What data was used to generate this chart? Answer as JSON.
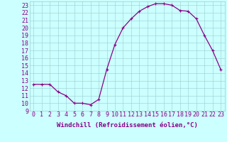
{
  "x": [
    0,
    1,
    2,
    3,
    4,
    5,
    6,
    7,
    8,
    9,
    10,
    11,
    12,
    13,
    14,
    15,
    16,
    17,
    18,
    19,
    20,
    21,
    22,
    23
  ],
  "y": [
    12.5,
    12.5,
    12.5,
    11.5,
    11.0,
    10.0,
    10.0,
    9.8,
    10.5,
    14.5,
    17.8,
    20.0,
    21.2,
    22.2,
    22.8,
    23.2,
    23.2,
    23.0,
    22.3,
    22.2,
    21.2,
    19.0,
    17.0,
    14.5
  ],
  "line_color": "#880088",
  "marker": "+",
  "markersize": 3,
  "linewidth": 0.9,
  "bg_color": "#ccffff",
  "grid_color": "#99cccc",
  "xlabel": "Windchill (Refroidissement éolien,°C)",
  "xlabel_fontsize": 6.5,
  "tick_fontsize": 6,
  "xlim": [
    -0.5,
    23.5
  ],
  "ylim": [
    9,
    23.5
  ],
  "yticks": [
    9,
    10,
    11,
    12,
    13,
    14,
    15,
    16,
    17,
    18,
    19,
    20,
    21,
    22,
    23
  ],
  "xticks": [
    0,
    1,
    2,
    3,
    4,
    5,
    6,
    7,
    8,
    9,
    10,
    11,
    12,
    13,
    14,
    15,
    16,
    17,
    18,
    19,
    20,
    21,
    22,
    23
  ]
}
